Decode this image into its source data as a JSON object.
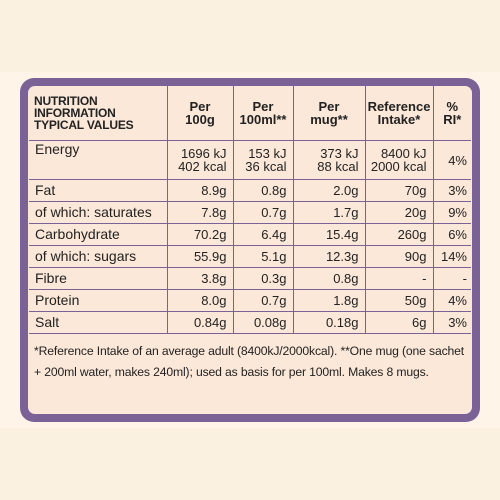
{
  "header": {
    "label_lines": [
      "NUTRITION",
      "INFORMATION",
      "TYPICAL VALUES"
    ],
    "per100g": [
      "Per",
      "100g"
    ],
    "per100ml": [
      "Per",
      "100ml**"
    ],
    "permug": [
      "Per",
      "mug**"
    ],
    "ref": [
      "Reference",
      "Intake*"
    ],
    "ri": [
      "%",
      "RI*"
    ]
  },
  "energy": {
    "name": "Energy",
    "per100g": [
      "1696 kJ",
      "402 kcal"
    ],
    "per100ml": [
      "153 kJ",
      "36 kcal"
    ],
    "permug": [
      "373 kJ",
      "88 kcal"
    ],
    "ref": [
      "8400 kJ",
      "2000 kcal"
    ],
    "ri": "4%"
  },
  "rows": [
    {
      "name": "Fat",
      "per100g": "8.9g",
      "per100ml": "0.8g",
      "permug": "2.0g",
      "ref": "70g",
      "ri": "3%"
    },
    {
      "name": "of which: saturates",
      "per100g": "7.8g",
      "per100ml": "0.7g",
      "permug": "1.7g",
      "ref": "20g",
      "ri": "9%"
    },
    {
      "name": "Carbohydrate",
      "per100g": "70.2g",
      "per100ml": "6.4g",
      "permug": "15.4g",
      "ref": "260g",
      "ri": "6%"
    },
    {
      "name": "of which: sugars",
      "per100g": "55.9g",
      "per100ml": "5.1g",
      "permug": "12.3g",
      "ref": "90g",
      "ri": "14%"
    },
    {
      "name": "Fibre",
      "per100g": "3.8g",
      "per100ml": "0.3g",
      "permug": "0.8g",
      "ref": "-",
      "ri": "-"
    },
    {
      "name": "Protein",
      "per100g": "8.0g",
      "per100ml": "0.7g",
      "permug": "1.8g",
      "ref": "50g",
      "ri": "4%"
    },
    {
      "name": "Salt",
      "per100g": "0.84g",
      "per100ml": "0.08g",
      "permug": "0.18g",
      "ref": "6g",
      "ri": "3%"
    }
  ],
  "footnote": "*Reference Intake of an average adult (8400kJ/2000kcal). **One mug (one sachet + 200ml water, makes 240ml); used as basis for per 100ml. Makes 8 mugs."
}
